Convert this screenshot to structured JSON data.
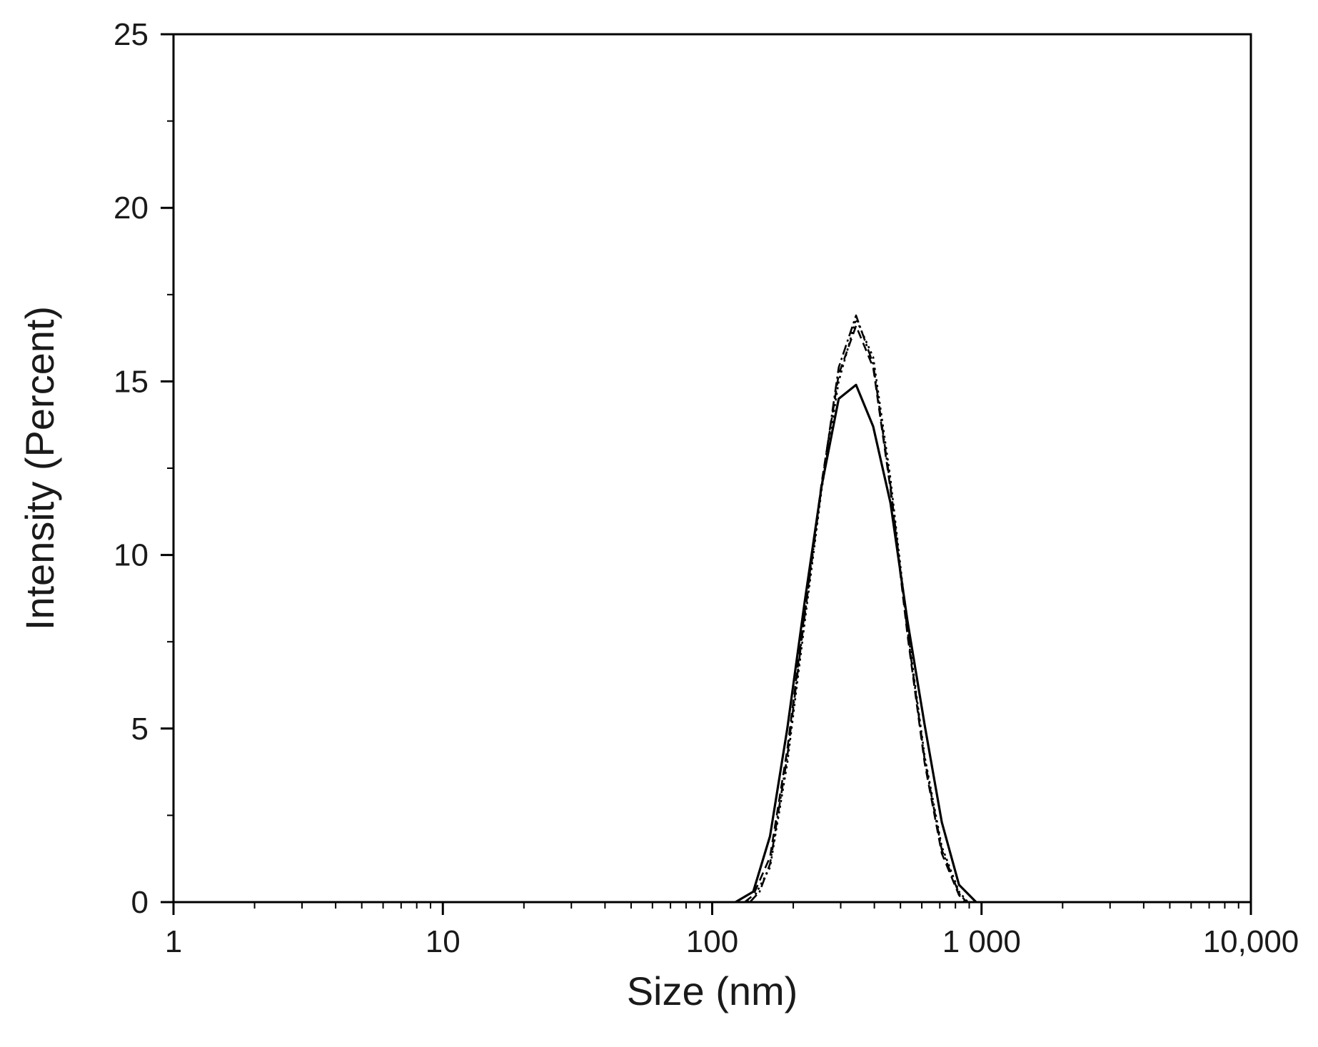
{
  "chart_data": {
    "type": "line",
    "title": "",
    "xlabel": "Size (nm)",
    "ylabel": "Intensity (Percent)",
    "x_scale": "log",
    "xlim": [
      1,
      10000
    ],
    "ylim": [
      0,
      25
    ],
    "x_ticks": [
      {
        "value": 1,
        "label": "1"
      },
      {
        "value": 10,
        "label": "10"
      },
      {
        "value": 100,
        "label": "100"
      },
      {
        "value": 1000,
        "label": "1 000"
      },
      {
        "value": 10000,
        "label": "10,000"
      }
    ],
    "y_ticks": [
      {
        "value": 0,
        "label": "0"
      },
      {
        "value": 5,
        "label": "5"
      },
      {
        "value": 10,
        "label": "10"
      },
      {
        "value": 15,
        "label": "15"
      },
      {
        "value": 20,
        "label": "20"
      },
      {
        "value": 25,
        "label": "25"
      }
    ],
    "grid": false,
    "legend": "none",
    "series": [
      {
        "style": "solid",
        "color": "#000000",
        "x": [
          122,
          142,
          164,
          190,
          220,
          255,
          295,
          342,
          396,
          459,
          531,
          615,
          712,
          825,
          955
        ],
        "y": [
          0,
          0.3,
          1.9,
          5.0,
          8.6,
          12.0,
          14.5,
          14.9,
          13.7,
          11.5,
          8.1,
          5.1,
          2.3,
          0.5,
          0
        ]
      },
      {
        "style": "dashed",
        "color": "#000000",
        "x": [
          132,
          142,
          164,
          190,
          220,
          255,
          295,
          342,
          396,
          459,
          531,
          615,
          712,
          825,
          870
        ],
        "y": [
          0,
          0.2,
          1.3,
          4.4,
          8.3,
          12.1,
          15.2,
          16.6,
          15.4,
          11.9,
          7.7,
          4.0,
          1.4,
          0.2,
          0
        ]
      },
      {
        "style": "dotted",
        "color": "#000000",
        "x": [
          135,
          142,
          164,
          190,
          220,
          255,
          295,
          342,
          396,
          459,
          531,
          615,
          712,
          825,
          890
        ],
        "y": [
          0,
          0.1,
          1.0,
          4.0,
          8.0,
          11.9,
          15.0,
          16.8,
          15.7,
          12.2,
          7.9,
          4.2,
          1.6,
          0.3,
          0
        ]
      },
      {
        "style": "dash-dot",
        "color": "#000000",
        "x": [
          138,
          150,
          164,
          190,
          220,
          255,
          295,
          342,
          396,
          459,
          531,
          615,
          712,
          825,
          880
        ],
        "y": [
          0,
          0.3,
          1.1,
          4.2,
          8.2,
          12.0,
          15.4,
          16.9,
          15.5,
          12.0,
          7.8,
          4.1,
          1.5,
          0.25,
          0
        ]
      }
    ]
  }
}
